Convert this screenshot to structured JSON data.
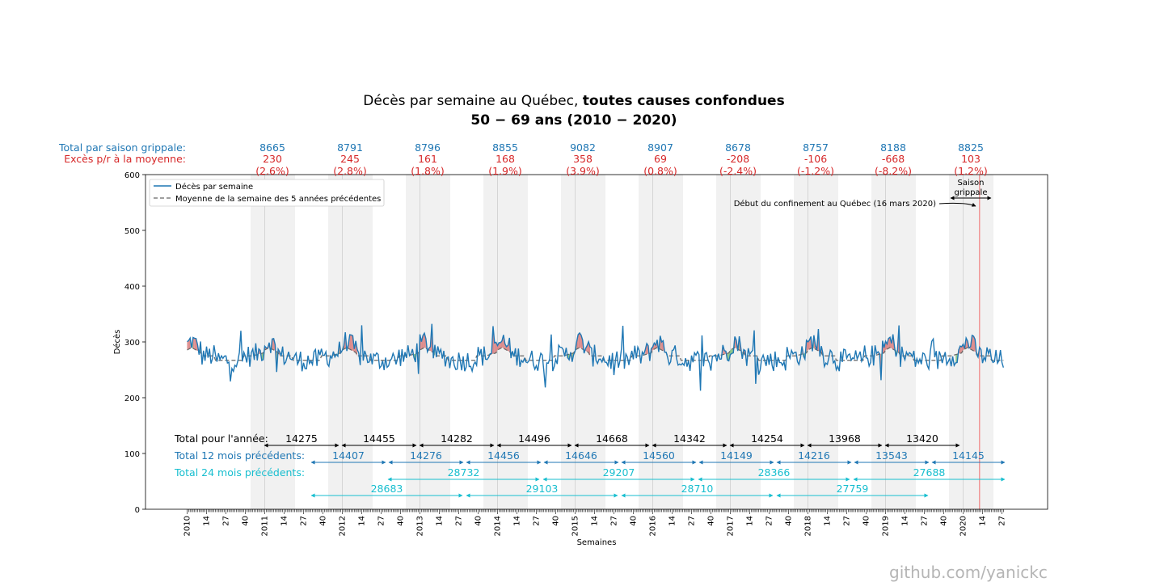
{
  "chart_data": {
    "type": "line",
    "title_line1_normal": "Décès par semaine au Québec, ",
    "title_line1_bold": "toutes causes confondues",
    "title_line2": "50 − 69 ans (2010 − 2020)",
    "xlabel": "Semaines",
    "ylabel": "Décès",
    "ylim": [
      0,
      600
    ],
    "yticks": [
      "0",
      "100",
      "200",
      "300",
      "400",
      "500",
      "600"
    ],
    "year_labels": [
      "2010",
      "2011",
      "2012",
      "2013",
      "2014",
      "2015",
      "2016",
      "2017",
      "2018",
      "2019",
      "2020"
    ],
    "week_tick_labels": [
      "14",
      "27",
      "40"
    ],
    "last_week_label": "27",
    "legend": {
      "position": "top-left",
      "entries": [
        "Décès par semaine",
        "Moyenne de la semaine des 5 années précédentes"
      ]
    },
    "colors": {
      "series": "#1f77b4",
      "average": "#666666",
      "excess": "#d62728",
      "cyan": "#17becf",
      "black": "#000000",
      "flu_band": "#e5e5e5",
      "positive_fill": "#d98080",
      "negative_fill": "#80c080",
      "lockdown_line": "#f08080"
    },
    "header_rows": {
      "total_label": "Total par saison grippale:",
      "excess_label": "Excès p/r à la moyenne:"
    },
    "flu_seasons": [
      {
        "total": "8665",
        "excess": "230",
        "pct": "(2.6%)"
      },
      {
        "total": "8791",
        "excess": "245",
        "pct": "(2.8%)"
      },
      {
        "total": "8796",
        "excess": "161",
        "pct": "(1.8%)"
      },
      {
        "total": "8855",
        "excess": "168",
        "pct": "(1.9%)"
      },
      {
        "total": "9082",
        "excess": "358",
        "pct": "(3.9%)"
      },
      {
        "total": "8907",
        "excess": "69",
        "pct": "(0.8%)"
      },
      {
        "total": "8678",
        "excess": "-208",
        "pct": "(-2.4%)"
      },
      {
        "total": "8757",
        "excess": "-106",
        "pct": "(-1.2%)"
      },
      {
        "total": "8188",
        "excess": "-668",
        "pct": "(-8.2%)"
      },
      {
        "total": "8825",
        "excess": "103",
        "pct": "(1.2%)"
      }
    ],
    "annotations": {
      "season_label": "Saison\ngrippale",
      "lockdown": "Début du confinement au Québec (16 mars 2020)"
    },
    "totals": {
      "year_label": "Total pour l'année:",
      "year_values": [
        "14275",
        "14455",
        "14282",
        "14496",
        "14668",
        "14342",
        "14254",
        "13968",
        "13420"
      ],
      "m12_label": "Total 12 mois précédents:",
      "m12_values": [
        "14407",
        "14276",
        "14456",
        "14646",
        "14560",
        "14149",
        "14216",
        "13543",
        "14145"
      ],
      "m24_label": "Total 24 mois précédents:",
      "m24_upper_values": [
        "28732",
        "29207",
        "28366",
        "27688"
      ],
      "m24_lower_values": [
        "28683",
        "29103",
        "28710",
        "27759"
      ]
    },
    "weekly_baseline": 275,
    "weekly_amplitude": 25,
    "watermark": "github.com/yanickc"
  }
}
